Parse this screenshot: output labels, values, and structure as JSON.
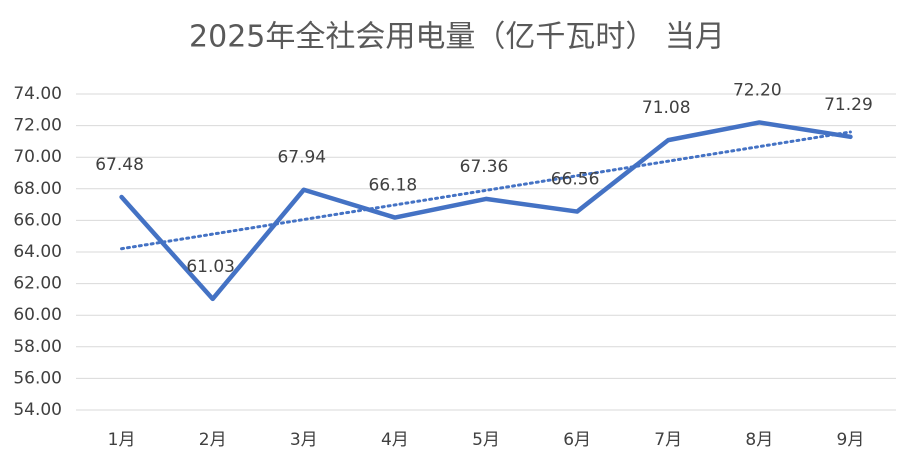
{
  "chart_data": {
    "type": "line",
    "title": "2025年全社会用电量（亿千瓦时） 当月",
    "categories": [
      "1月",
      "2月",
      "3月",
      "4月",
      "5月",
      "6月",
      "7月",
      "8月",
      "9月"
    ],
    "series": [
      {
        "color": "#4472c4",
        "values": [
          67.48,
          61.03,
          67.94,
          66.18,
          67.36,
          66.56,
          71.08,
          72.2,
          71.29
        ],
        "value_labels": [
          "67.48",
          "61.03",
          "67.94",
          "66.18",
          "67.36",
          "66.56",
          "71.08",
          "72.20",
          "71.29"
        ]
      }
    ],
    "trendline": "linear",
    "ylim": [
      54,
      74
    ],
    "yticks": [
      {
        "value": 54,
        "label": "54.00"
      },
      {
        "value": 56,
        "label": "56.00"
      },
      {
        "value": 58,
        "label": "58.00"
      },
      {
        "value": 60,
        "label": "60.00"
      },
      {
        "value": 62,
        "label": "62.00"
      },
      {
        "value": 64,
        "label": "64.00"
      },
      {
        "value": 66,
        "label": "66.00"
      },
      {
        "value": 68,
        "label": "68.00"
      },
      {
        "value": 70,
        "label": "70.00"
      },
      {
        "value": 72,
        "label": "72.00"
      },
      {
        "value": 74,
        "label": "74.00"
      }
    ],
    "grid": true
  }
}
